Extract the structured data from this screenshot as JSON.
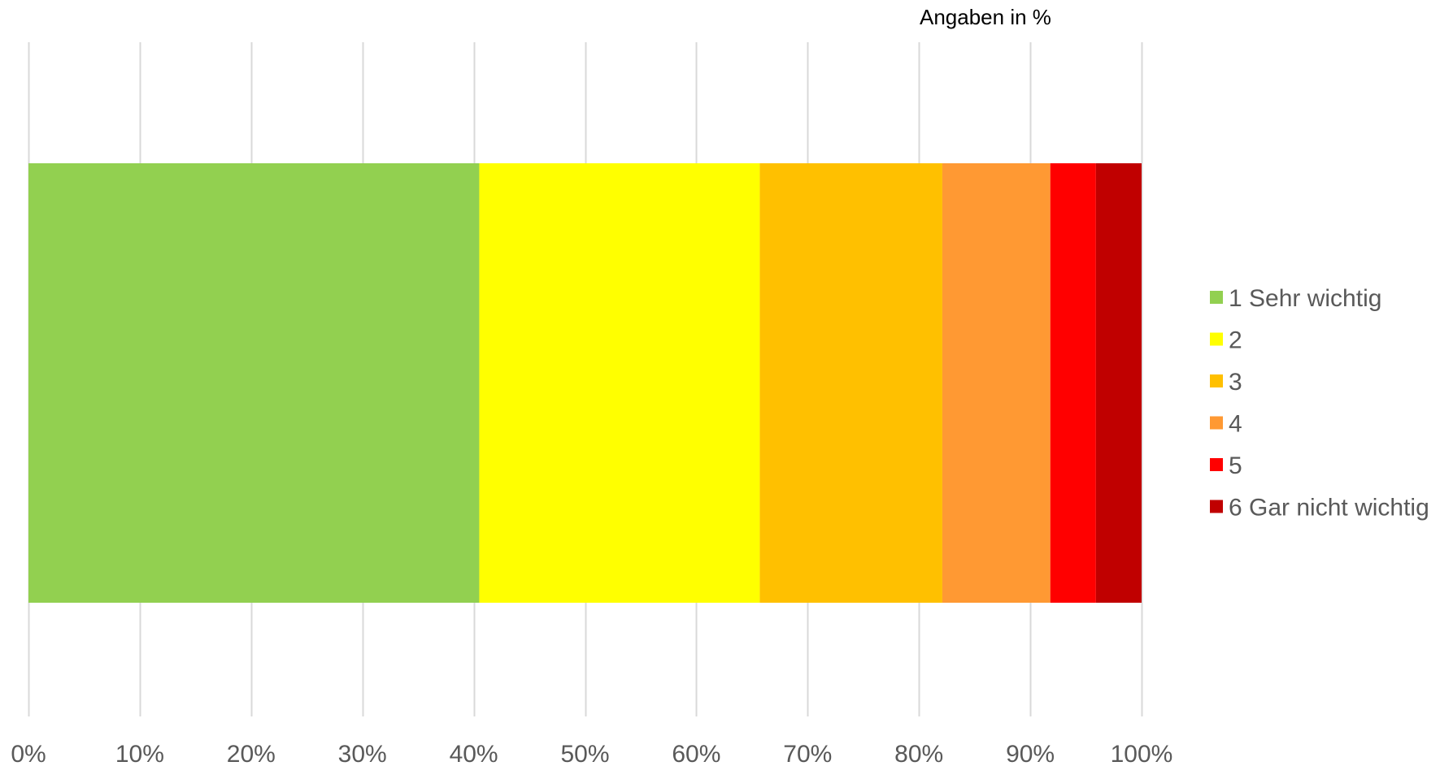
{
  "chart_data": {
    "type": "bar",
    "orientation": "horizontal",
    "stacked": true,
    "annotation": "Angaben in %",
    "xlim": [
      0,
      100
    ],
    "x_ticks": [
      0,
      10,
      20,
      30,
      40,
      50,
      60,
      70,
      80,
      90,
      100
    ],
    "x_tick_labels": [
      "0%",
      "10%",
      "20%",
      "30%",
      "40%",
      "50%",
      "60%",
      "70%",
      "80%",
      "90%",
      "100%"
    ],
    "grid": true,
    "legend_position": "right",
    "series": [
      {
        "name": "1 Sehr wichtig",
        "value": 40.5,
        "color": "#92d050"
      },
      {
        "name": "2",
        "value": 25.2,
        "color": "#ffff00"
      },
      {
        "name": "3",
        "value": 16.4,
        "color": "#ffc000"
      },
      {
        "name": "4",
        "value": 9.7,
        "color": "#ff9933"
      },
      {
        "name": "5",
        "value": 4.1,
        "color": "#ff0000"
      },
      {
        "name": "6 Gar nicht wichtig",
        "value": 4.1,
        "color": "#c00000"
      }
    ]
  }
}
